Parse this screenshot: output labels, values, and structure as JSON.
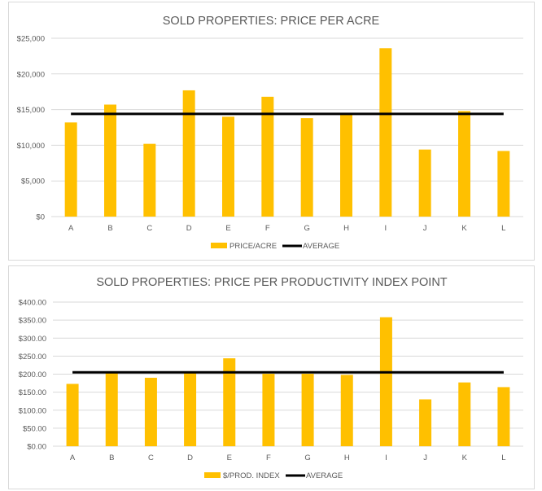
{
  "chart_data": [
    {
      "type": "bar",
      "title": "SOLD PROPERTIES: PRICE PER ACRE",
      "categories": [
        "A",
        "B",
        "C",
        "D",
        "E",
        "F",
        "G",
        "H",
        "I",
        "J",
        "K",
        "L"
      ],
      "series": [
        {
          "name": "PRICE/ACRE",
          "type": "bar",
          "color": "#ffc000",
          "values": [
            13200,
            15700,
            10200,
            17700,
            14000,
            16800,
            13800,
            14500,
            23600,
            9400,
            14800,
            9200
          ]
        },
        {
          "name": "AVERAGE",
          "type": "line",
          "color": "#000000",
          "values": [
            14400,
            14400,
            14400,
            14400,
            14400,
            14400,
            14400,
            14400,
            14400,
            14400,
            14400,
            14400
          ]
        }
      ],
      "ylim": [
        0,
        25000
      ],
      "yticks": [
        0,
        5000,
        10000,
        15000,
        20000,
        25000
      ],
      "ytick_labels": [
        "$0",
        "$5,000",
        "$10,000",
        "$15,000",
        "$20,000",
        "$25,000"
      ],
      "gridlines": true,
      "legend": "bottom",
      "xlabel": "",
      "ylabel": ""
    },
    {
      "type": "bar",
      "title": "SOLD PROPERTIES: PRICE PER PRODUCTIVITY INDEX  POINT",
      "categories": [
        "A",
        "B",
        "C",
        "D",
        "E",
        "F",
        "G",
        "H",
        "I",
        "J",
        "K",
        "L"
      ],
      "series": [
        {
          "name": "$/PROD. INDEX",
          "type": "bar",
          "color": "#ffc000",
          "values": [
            173,
            203,
            190,
            203,
            244,
            201,
            201,
            198,
            358,
            130,
            177,
            164
          ]
        },
        {
          "name": "AVERAGE",
          "type": "line",
          "color": "#000000",
          "values": [
            205,
            205,
            205,
            205,
            205,
            205,
            205,
            205,
            205,
            205,
            205,
            205
          ]
        }
      ],
      "ylim": [
        0,
        400
      ],
      "yticks": [
        0,
        50,
        100,
        150,
        200,
        250,
        300,
        350,
        400
      ],
      "ytick_labels": [
        "$0.00",
        "$50.00",
        "$100.00",
        "$150.00",
        "$200.00",
        "$250.00",
        "$300.00",
        "$350.00",
        "$400.00"
      ],
      "gridlines": true,
      "legend": "bottom",
      "xlabel": "",
      "ylabel": ""
    }
  ]
}
